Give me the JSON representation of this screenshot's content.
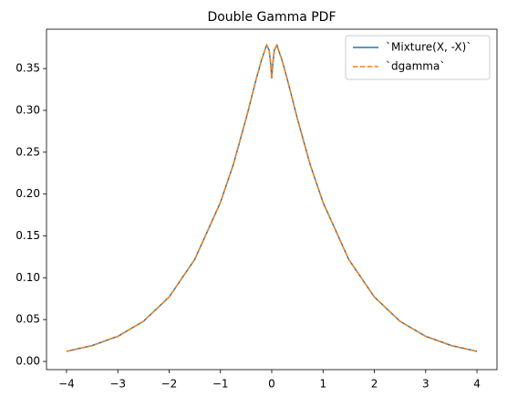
{
  "chart_data": {
    "type": "line",
    "title": "Double Gamma PDF",
    "x": [
      -4,
      -3.5,
      -3,
      -2.5,
      -2,
      -1.5,
      -1,
      -0.75,
      -0.5,
      -0.3,
      -0.2,
      -0.1,
      -0.05,
      -0.02,
      0,
      0.02,
      0.05,
      0.1,
      0.2,
      0.3,
      0.5,
      0.75,
      1,
      1.5,
      2,
      2.5,
      3,
      3.5,
      4
    ],
    "series": [
      {
        "name": "`Mixture(X, -X)`",
        "color": "#1f77b4",
        "dash": false,
        "values": [
          0.012,
          0.019,
          0.03,
          0.048,
          0.077,
          0.122,
          0.19,
          0.235,
          0.29,
          0.338,
          0.36,
          0.378,
          0.372,
          0.355,
          0.338,
          0.355,
          0.372,
          0.378,
          0.36,
          0.338,
          0.29,
          0.235,
          0.19,
          0.122,
          0.077,
          0.048,
          0.03,
          0.019,
          0.012
        ]
      },
      {
        "name": "`dgamma`",
        "color": "#ff7f0e",
        "dash": true,
        "values": [
          0.012,
          0.019,
          0.03,
          0.048,
          0.077,
          0.122,
          0.19,
          0.235,
          0.29,
          0.338,
          0.36,
          0.378,
          0.372,
          0.355,
          0.338,
          0.355,
          0.372,
          0.378,
          0.36,
          0.338,
          0.29,
          0.235,
          0.19,
          0.122,
          0.077,
          0.048,
          0.03,
          0.019,
          0.012
        ]
      }
    ],
    "xlim": [
      -4.39,
      4.39
    ],
    "xticks": [
      {
        "value": -4,
        "label": "−4"
      },
      {
        "value": -3,
        "label": "−3"
      },
      {
        "value": -2,
        "label": "−2"
      },
      {
        "value": -1,
        "label": "−1"
      },
      0,
      1,
      2,
      3,
      4
    ],
    "ylim": [
      -0.0098,
      0.397
    ],
    "yticks": [
      {
        "value": 0,
        "label": "0.00"
      },
      {
        "value": 0.05,
        "label": "0.05"
      },
      {
        "value": 0.1,
        "label": "0.10"
      },
      {
        "value": 0.15,
        "label": "0.15"
      },
      {
        "value": 0.2,
        "label": "0.20"
      },
      {
        "value": 0.25,
        "label": "0.25"
      },
      {
        "value": 0.3,
        "label": "0.30"
      },
      {
        "value": 0.35,
        "label": "0.35"
      }
    ],
    "legend": "upper right"
  }
}
